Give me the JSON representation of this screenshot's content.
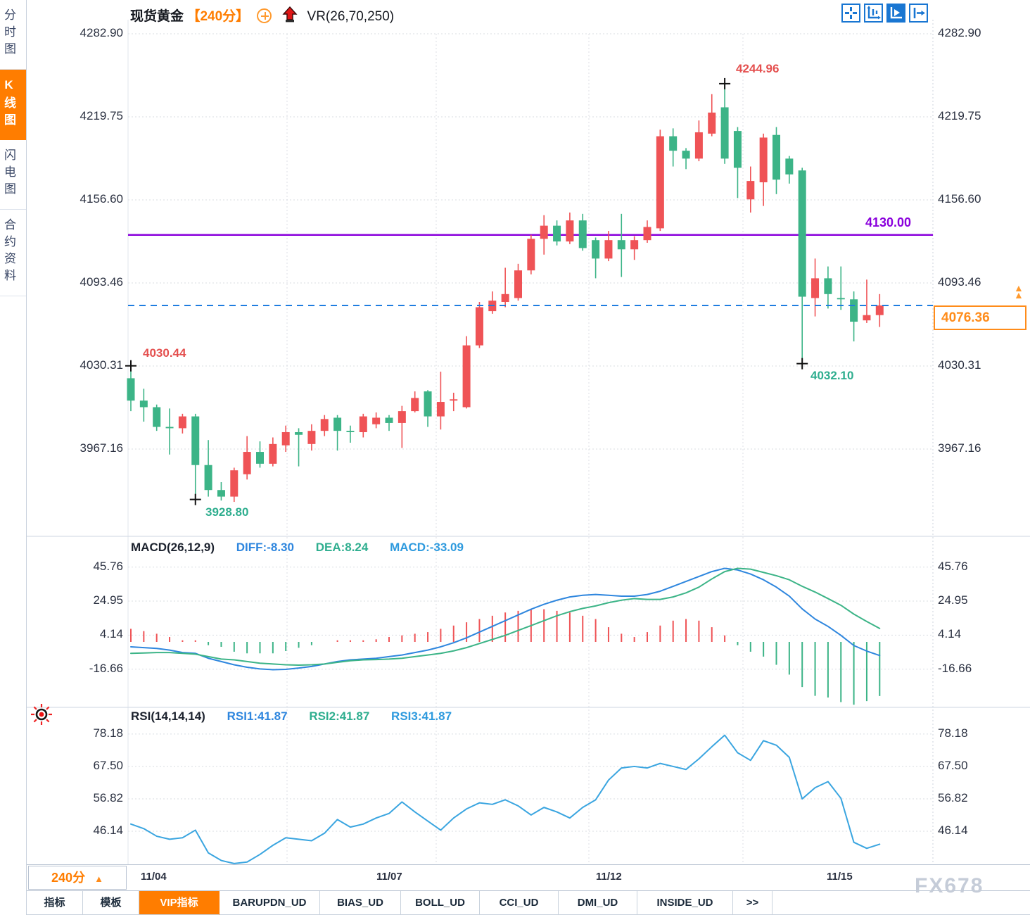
{
  "window": {
    "watermark": "FX678"
  },
  "sidebar": {
    "items": [
      {
        "label": "分时图",
        "active": false
      },
      {
        "label": "K线图",
        "active": true
      },
      {
        "label": "闪电图",
        "active": false
      },
      {
        "label": "合约资料",
        "active": false
      }
    ]
  },
  "header": {
    "symbol": "现货黄金",
    "period": "【240分】",
    "overlay": "VR(26,70,250)"
  },
  "toolbar": {
    "icons": [
      {
        "name": "pan-cross-icon",
        "active": false
      },
      {
        "name": "axis-fit-icon",
        "active": false
      },
      {
        "name": "axis-play-icon",
        "active": true
      },
      {
        "name": "snap-latest-icon",
        "active": false
      }
    ]
  },
  "colors": {
    "up": "#ef5356",
    "down": "#3cb487",
    "accent_orange": "#ff7d00",
    "diff_blue": "#2e86de",
    "dea_green": "#3cb487",
    "macd_cyan": "#2e9ade",
    "rsi_blue": "#3aa5e0",
    "hline_purple": "#8a00dc",
    "current_dashed_blue": "#1f7de0",
    "annotation_red": "#e4504f",
    "annotation_green": "#2fae8f"
  },
  "main_chart": {
    "y_ticks": [
      "4282.90",
      "4219.75",
      "4156.60",
      "4093.46",
      "4030.31",
      "3967.16"
    ],
    "annotations": {
      "high_left": "4030.44",
      "low_left": "3928.80",
      "high_right": "4244.96",
      "low_right": "4032.10",
      "hline_label": "4130.00",
      "last_price": "4076.36"
    }
  },
  "macd": {
    "title": "MACD(26,12,9)",
    "diff_label": "DIFF:-8.30",
    "dea_label": "DEA:8.24",
    "macd_label": "MACD:-33.09",
    "y_ticks": [
      "45.76",
      "24.95",
      "4.14",
      "-16.66"
    ]
  },
  "rsi": {
    "title": "RSI(14,14,14)",
    "rsi1_label": "RSI1:41.87",
    "rsi2_label": "RSI2:41.87",
    "rsi3_label": "RSI3:41.87",
    "y_ticks": [
      "78.18",
      "67.50",
      "56.82",
      "46.14"
    ]
  },
  "x_axis": {
    "labels": [
      "11/04",
      "11/07",
      "11/12",
      "11/15"
    ]
  },
  "period_selector": {
    "label": "240分",
    "arrow": "▲"
  },
  "tabs": [
    {
      "label": "指标",
      "active": false
    },
    {
      "label": "模板",
      "active": false
    },
    {
      "label": "VIP指标",
      "active": true
    },
    {
      "label": "BARUPDN_UD",
      "active": false
    },
    {
      "label": "BIAS_UD",
      "active": false
    },
    {
      "label": "BOLL_UD",
      "active": false
    },
    {
      "label": "CCI_UD",
      "active": false
    },
    {
      "label": "DMI_UD",
      "active": false
    },
    {
      "label": "INSIDE_UD",
      "active": false
    },
    {
      "label": ">>",
      "active": false
    }
  ],
  "chart_data": [
    {
      "type": "candlestick",
      "title": "现货黄金 240分",
      "x_labels": [
        "11/04",
        "11/07",
        "11/12",
        "11/15"
      ],
      "y_ticks": [
        4282.9,
        4219.75,
        4156.6,
        4093.46,
        4030.31,
        3967.16
      ],
      "horizontal_line": 4130.0,
      "current_price": 4076.36,
      "marked_points": {
        "high_early": 4030.44,
        "low_early": 3928.8,
        "high_peak": 4244.96,
        "low_late": 4032.1
      },
      "candles_ohlc": [
        [
          4021,
          4030.44,
          3996,
          4004
        ],
        [
          4004,
          4013,
          3988,
          3999
        ],
        [
          3999,
          4001,
          3981,
          3984
        ],
        [
          3984,
          3998,
          3963,
          3983
        ],
        [
          3983,
          3994,
          3979,
          3992
        ],
        [
          3992,
          3994,
          3928.8,
          3955
        ],
        [
          3955,
          3974,
          3931,
          3936
        ],
        [
          3936,
          3942,
          3928,
          3931
        ],
        [
          3931,
          3953,
          3927,
          3951
        ],
        [
          3948,
          3977,
          3944,
          3965
        ],
        [
          3965,
          3973,
          3953,
          3956
        ],
        [
          3956,
          3976,
          3954,
          3971
        ],
        [
          3970,
          3985,
          3965,
          3980
        ],
        [
          3980,
          3983,
          3954,
          3978
        ],
        [
          3971,
          3986,
          3966,
          3981
        ],
        [
          3981,
          3993,
          3977,
          3990
        ],
        [
          3991,
          3993,
          3966,
          3981
        ],
        [
          3981,
          3985,
          3972,
          3980
        ],
        [
          3980,
          3994,
          3976,
          3992
        ],
        [
          3986,
          3995,
          3983,
          3991
        ],
        [
          3991,
          3993,
          3981,
          3987
        ],
        [
          3987,
          4000,
          3968,
          3996
        ],
        [
          3996,
          4011,
          3995,
          4006
        ],
        [
          4011,
          4012,
          3984,
          3992
        ],
        [
          3992,
          4026,
          3982,
          4003
        ],
        [
          4004,
          4010,
          3996,
          4005
        ],
        [
          3999,
          4053,
          3998,
          4046
        ],
        [
          4046,
          4079,
          4044,
          4075
        ],
        [
          4072,
          4087,
          4070,
          4080
        ],
        [
          4079,
          4105,
          4075,
          4085
        ],
        [
          4082,
          4108,
          4080,
          4103
        ],
        [
          4103,
          4130,
          4100,
          4127
        ],
        [
          4127,
          4145,
          4115,
          4137
        ],
        [
          4137,
          4141,
          4122,
          4125
        ],
        [
          4125,
          4147,
          4123,
          4141
        ],
        [
          4141,
          4146,
          4118,
          4120
        ],
        [
          4126,
          4128,
          4097,
          4112
        ],
        [
          4112,
          4133,
          4110,
          4126
        ],
        [
          4126,
          4146,
          4098,
          4119
        ],
        [
          4119,
          4129,
          4111,
          4126
        ],
        [
          4126,
          4141,
          4124,
          4136
        ],
        [
          4135,
          4210,
          4133,
          4205
        ],
        [
          4205,
          4211,
          4182,
          4194
        ],
        [
          4194,
          4196,
          4180,
          4188
        ],
        [
          4188,
          4217,
          4186,
          4208
        ],
        [
          4207,
          4237,
          4205,
          4223
        ],
        [
          4227,
          4244.96,
          4184,
          4188
        ],
        [
          4209,
          4212,
          4158,
          4181
        ],
        [
          4157,
          4182,
          4147,
          4171
        ],
        [
          4170,
          4207,
          4152,
          4204
        ],
        [
          4206,
          4212,
          4161,
          4172
        ],
        [
          4188,
          4190,
          4169,
          4176
        ],
        [
          4179,
          4181,
          4032.1,
          4083
        ],
        [
          4082,
          4112,
          4068,
          4097
        ],
        [
          4097,
          4106,
          4074,
          4085
        ],
        [
          4082,
          4106,
          4073,
          4081
        ],
        [
          4081,
          4087,
          4049,
          4064
        ],
        [
          4065,
          4096,
          4063,
          4069
        ],
        [
          4069,
          4085,
          4060,
          4076.36
        ]
      ]
    },
    {
      "type": "bar",
      "name": "MACD",
      "params": [
        26,
        12,
        9
      ],
      "readout": {
        "DIFF": -8.3,
        "DEA": 8.24,
        "MACD": -33.09
      },
      "y_ticks": [
        45.76,
        24.95,
        4.14,
        -16.66
      ],
      "histogram_rule": "2*(DIFF-DEA)",
      "series": [
        {
          "name": "DIFF",
          "values": [
            -3,
            -3.5,
            -4,
            -5,
            -6.5,
            -7,
            -10,
            -12,
            -14,
            -15.5,
            -16.5,
            -17,
            -16.8,
            -16,
            -15,
            -13.5,
            -12,
            -11,
            -10.5,
            -10,
            -9,
            -8,
            -6.5,
            -5,
            -3,
            -0.5,
            2.5,
            6,
            9.5,
            13,
            16.5,
            20,
            23,
            25.5,
            27.5,
            28.5,
            29,
            28.5,
            28,
            28,
            29,
            31,
            34,
            37,
            40,
            43,
            45,
            44,
            41.5,
            38,
            33.5,
            28,
            20.2,
            14,
            9.5,
            4,
            -2.2,
            -5.6,
            -8.3
          ]
        },
        {
          "name": "DEA",
          "values": [
            -7,
            -6.8,
            -6.5,
            -6.5,
            -7,
            -7.5,
            -9,
            -10.5,
            -11,
            -12,
            -13,
            -13.5,
            -14,
            -14.2,
            -14,
            -13.5,
            -12.5,
            -11.5,
            -11,
            -10.8,
            -10.5,
            -10,
            -9,
            -8,
            -7,
            -5.5,
            -3.5,
            -1,
            1.5,
            4,
            7,
            10,
            13,
            16,
            18.5,
            20.5,
            22,
            24,
            25.5,
            26.5,
            26,
            26,
            27.5,
            30,
            33.5,
            38.5,
            43,
            45,
            44.5,
            42.5,
            40.5,
            38,
            34,
            30.5,
            26.5,
            22.4,
            17,
            12.5,
            8.24
          ]
        }
      ]
    },
    {
      "type": "line",
      "name": "RSI",
      "params": [
        14,
        14,
        14
      ],
      "readout": {
        "RSI1": 41.87,
        "RSI2": 41.87,
        "RSI3": 41.87
      },
      "y_ticks": [
        78.18,
        67.5,
        56.82,
        46.14
      ],
      "values": [
        48.5,
        47,
        44.5,
        43.5,
        44,
        46.5,
        39,
        36.5,
        35.5,
        36,
        38.5,
        41.5,
        44,
        43.5,
        43,
        45.5,
        50,
        47.5,
        48.5,
        50.5,
        52,
        55.8,
        52.5,
        49.5,
        46.5,
        50.5,
        53.5,
        55.5,
        55,
        56.5,
        54.5,
        51.5,
        54,
        52.5,
        50.5,
        54,
        56.5,
        63,
        67,
        67.5,
        67,
        68.5,
        67.5,
        66.5,
        70,
        74,
        77.8,
        72,
        69.5,
        76,
        74.5,
        70.5,
        56.8,
        60.5,
        62.5,
        57,
        42.5,
        40.5,
        41.87
      ]
    }
  ]
}
